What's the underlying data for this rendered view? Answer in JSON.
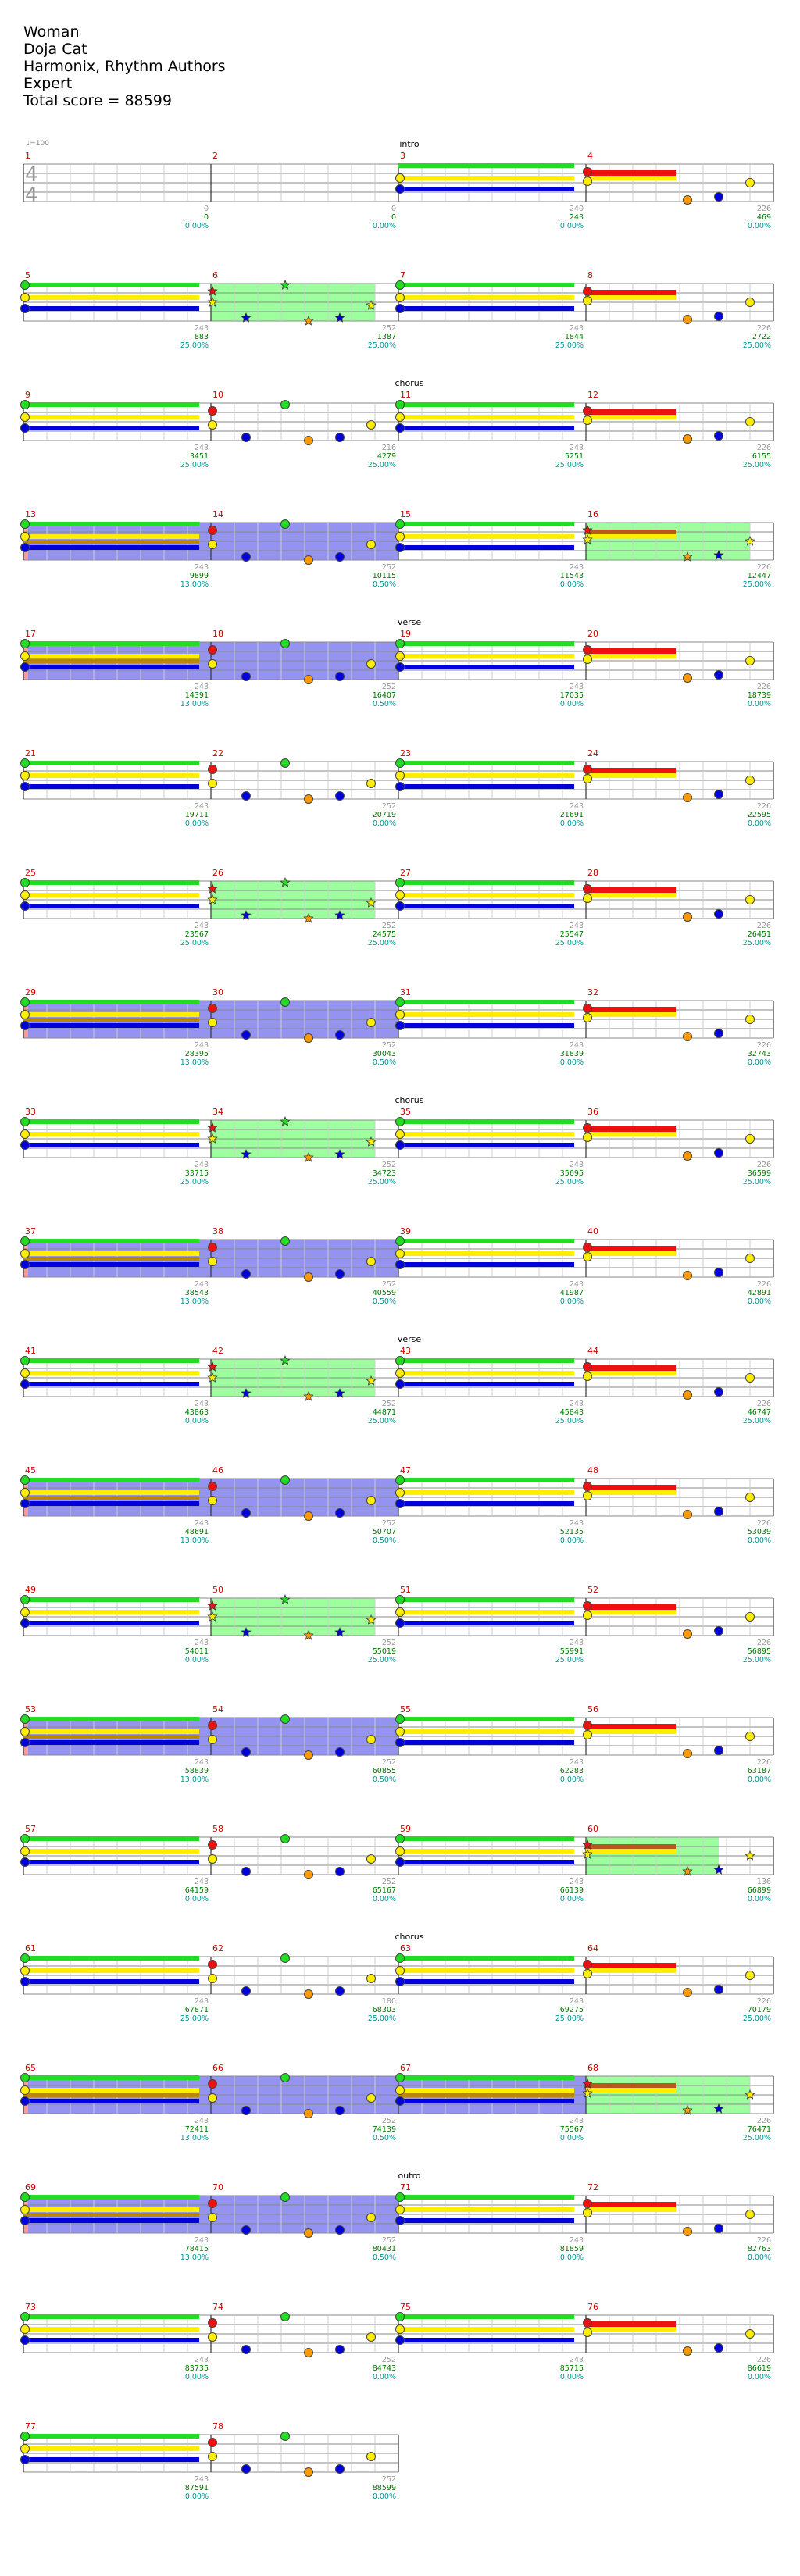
{
  "song": {
    "title": "Woman",
    "artist": "Doja Cat",
    "authors": "Harmonix, Rhythm Authors",
    "difficulty": "Expert",
    "total_score_label": "Total score = 88599"
  },
  "tempo_label": "♩=100",
  "time_signature": {
    "top": "4",
    "bottom": "4"
  },
  "colors": {
    "green": "#22dd22",
    "red": "#ee1111",
    "yellow": "#ffee00",
    "blue": "#0000dd",
    "orange": "#ff9900",
    "overdrive_fill": "#99ff99",
    "solo_fill": "#8888ee",
    "measure_num": "#cc0000",
    "score_num": "#007700",
    "percent": "#009999",
    "gray_num": "#999999"
  },
  "measure_count": 78,
  "sections": [
    {
      "measure": 3,
      "label": "intro"
    },
    {
      "measure": 11,
      "label": "chorus"
    },
    {
      "measure": 19,
      "label": "verse"
    },
    {
      "measure": 35,
      "label": "chorus"
    },
    {
      "measure": 43,
      "label": "verse"
    },
    {
      "measure": 63,
      "label": "chorus"
    },
    {
      "measure": 71,
      "label": "outro"
    }
  ],
  "measures": [
    {
      "n": 1,
      "gray": "0",
      "score": "0",
      "pct": "0.00%",
      "pattern": "empty"
    },
    {
      "n": 2,
      "gray": "0",
      "score": "0",
      "pct": "0.00%",
      "pattern": "empty"
    },
    {
      "n": 3,
      "gray": "240",
      "score": "243",
      "pct": "0.00%",
      "pattern": "sustain"
    },
    {
      "n": 4,
      "gray": "226",
      "score": "469",
      "pct": "0.00%",
      "pattern": "red"
    },
    {
      "n": 5,
      "gray": "243",
      "score": "883",
      "pct": "25.00%",
      "pattern": "sustain"
    },
    {
      "n": 6,
      "gray": "252",
      "score": "1387",
      "pct": "25.00%",
      "pattern": "stars",
      "od": true
    },
    {
      "n": 7,
      "gray": "243",
      "score": "1844",
      "pct": "25.00%",
      "pattern": "sustain"
    },
    {
      "n": 8,
      "gray": "226",
      "score": "2722",
      "pct": "25.00%",
      "pattern": "red"
    },
    {
      "n": 9,
      "gray": "243",
      "score": "3451",
      "pct": "25.00%",
      "pattern": "sustain"
    },
    {
      "n": 10,
      "gray": "216",
      "score": "4279",
      "pct": "25.00%",
      "pattern": "notes"
    },
    {
      "n": 11,
      "gray": "243",
      "score": "5251",
      "pct": "25.00%",
      "pattern": "sustain"
    },
    {
      "n": 12,
      "gray": "226",
      "score": "6155",
      "pct": "25.00%",
      "pattern": "red"
    },
    {
      "n": 13,
      "gray": "243",
      "score": "9899",
      "pct": "13.00%",
      "pattern": "sustain",
      "solo": true,
      "mark": true
    },
    {
      "n": 14,
      "gray": "252",
      "score": "10115",
      "pct": "0.50%",
      "pattern": "notes",
      "solo": true
    },
    {
      "n": 15,
      "gray": "243",
      "score": "11543",
      "pct": "0.00%",
      "pattern": "sustain"
    },
    {
      "n": 16,
      "gray": "226",
      "score": "12447",
      "pct": "25.00%",
      "pattern": "redstar",
      "od": true
    },
    {
      "n": 17,
      "gray": "243",
      "score": "14391",
      "pct": "13.00%",
      "pattern": "sustain",
      "solo": true,
      "mark": true
    },
    {
      "n": 18,
      "gray": "252",
      "score": "16407",
      "pct": "0.50%",
      "pattern": "notes",
      "solo": true
    },
    {
      "n": 19,
      "gray": "243",
      "score": "17035",
      "pct": "0.00%",
      "pattern": "sustain"
    },
    {
      "n": 20,
      "gray": "226",
      "score": "18739",
      "pct": "0.00%",
      "pattern": "red"
    },
    {
      "n": 21,
      "gray": "243",
      "score": "19711",
      "pct": "0.00%",
      "pattern": "sustain"
    },
    {
      "n": 22,
      "gray": "252",
      "score": "20719",
      "pct": "0.00%",
      "pattern": "notes"
    },
    {
      "n": 23,
      "gray": "243",
      "score": "21691",
      "pct": "0.00%",
      "pattern": "sustain"
    },
    {
      "n": 24,
      "gray": "226",
      "score": "22595",
      "pct": "0.00%",
      "pattern": "red"
    },
    {
      "n": 25,
      "gray": "243",
      "score": "23567",
      "pct": "25.00%",
      "pattern": "sustain"
    },
    {
      "n": 26,
      "gray": "252",
      "score": "24575",
      "pct": "25.00%",
      "pattern": "stars",
      "od": true
    },
    {
      "n": 27,
      "gray": "243",
      "score": "25547",
      "pct": "25.00%",
      "pattern": "sustain"
    },
    {
      "n": 28,
      "gray": "226",
      "score": "26451",
      "pct": "25.00%",
      "pattern": "red"
    },
    {
      "n": 29,
      "gray": "243",
      "score": "28395",
      "pct": "13.00%",
      "pattern": "sustain",
      "solo": true,
      "mark": true
    },
    {
      "n": 30,
      "gray": "252",
      "score": "30043",
      "pct": "0.50%",
      "pattern": "notes",
      "solo": true
    },
    {
      "n": 31,
      "gray": "243",
      "score": "31839",
      "pct": "0.00%",
      "pattern": "sustain"
    },
    {
      "n": 32,
      "gray": "226",
      "score": "32743",
      "pct": "0.00%",
      "pattern": "red"
    },
    {
      "n": 33,
      "gray": "243",
      "score": "33715",
      "pct": "25.00%",
      "pattern": "sustain"
    },
    {
      "n": 34,
      "gray": "252",
      "score": "34723",
      "pct": "25.00%",
      "pattern": "stars",
      "od": true
    },
    {
      "n": 35,
      "gray": "243",
      "score": "35695",
      "pct": "25.00%",
      "pattern": "sustain"
    },
    {
      "n": 36,
      "gray": "226",
      "score": "36599",
      "pct": "25.00%",
      "pattern": "red"
    },
    {
      "n": 37,
      "gray": "243",
      "score": "38543",
      "pct": "13.00%",
      "pattern": "sustain",
      "solo": true,
      "mark": true
    },
    {
      "n": 38,
      "gray": "252",
      "score": "40559",
      "pct": "0.50%",
      "pattern": "notes",
      "solo": true
    },
    {
      "n": 39,
      "gray": "243",
      "score": "41987",
      "pct": "0.00%",
      "pattern": "sustain"
    },
    {
      "n": 40,
      "gray": "226",
      "score": "42891",
      "pct": "0.00%",
      "pattern": "red"
    },
    {
      "n": 41,
      "gray": "243",
      "score": "43863",
      "pct": "0.00%",
      "pattern": "sustain"
    },
    {
      "n": 42,
      "gray": "252",
      "score": "44871",
      "pct": "25.00%",
      "pattern": "stars",
      "od": true
    },
    {
      "n": 43,
      "gray": "243",
      "score": "45843",
      "pct": "25.00%",
      "pattern": "sustain"
    },
    {
      "n": 44,
      "gray": "226",
      "score": "46747",
      "pct": "25.00%",
      "pattern": "red"
    },
    {
      "n": 45,
      "gray": "243",
      "score": "48691",
      "pct": "13.00%",
      "pattern": "sustain",
      "solo": true,
      "mark": true
    },
    {
      "n": 46,
      "gray": "252",
      "score": "50707",
      "pct": "0.50%",
      "pattern": "notes",
      "solo": true
    },
    {
      "n": 47,
      "gray": "243",
      "score": "52135",
      "pct": "0.00%",
      "pattern": "sustain"
    },
    {
      "n": 48,
      "gray": "226",
      "score": "53039",
      "pct": "0.00%",
      "pattern": "red"
    },
    {
      "n": 49,
      "gray": "243",
      "score": "54011",
      "pct": "0.00%",
      "pattern": "sustain"
    },
    {
      "n": 50,
      "gray": "252",
      "score": "55019",
      "pct": "25.00%",
      "pattern": "stars",
      "od": true
    },
    {
      "n": 51,
      "gray": "243",
      "score": "55991",
      "pct": "25.00%",
      "pattern": "sustain"
    },
    {
      "n": 52,
      "gray": "226",
      "score": "56895",
      "pct": "25.00%",
      "pattern": "red"
    },
    {
      "n": 53,
      "gray": "243",
      "score": "58839",
      "pct": "13.00%",
      "pattern": "sustain",
      "solo": true,
      "mark": true
    },
    {
      "n": 54,
      "gray": "252",
      "score": "60855",
      "pct": "0.50%",
      "pattern": "notes",
      "solo": true
    },
    {
      "n": 55,
      "gray": "243",
      "score": "62283",
      "pct": "0.00%",
      "pattern": "sustain"
    },
    {
      "n": 56,
      "gray": "226",
      "score": "63187",
      "pct": "0.00%",
      "pattern": "red"
    },
    {
      "n": 57,
      "gray": "243",
      "score": "64159",
      "pct": "0.00%",
      "pattern": "sustain"
    },
    {
      "n": 58,
      "gray": "252",
      "score": "65167",
      "pct": "0.00%",
      "pattern": "notes"
    },
    {
      "n": 59,
      "gray": "243",
      "score": "66139",
      "pct": "0.00%",
      "pattern": "sustain"
    },
    {
      "n": 60,
      "gray": "136",
      "score": "66899",
      "pct": "0.00%",
      "pattern": "redstar",
      "od": true,
      "odshort": true
    },
    {
      "n": 61,
      "gray": "243",
      "score": "67871",
      "pct": "25.00%",
      "pattern": "sustain"
    },
    {
      "n": 62,
      "gray": "180",
      "score": "68303",
      "pct": "25.00%",
      "pattern": "notes"
    },
    {
      "n": 63,
      "gray": "243",
      "score": "69275",
      "pct": "25.00%",
      "pattern": "sustain"
    },
    {
      "n": 64,
      "gray": "226",
      "score": "70179",
      "pct": "25.00%",
      "pattern": "red"
    },
    {
      "n": 65,
      "gray": "243",
      "score": "72411",
      "pct": "13.00%",
      "pattern": "sustain",
      "solo": true,
      "mark": true
    },
    {
      "n": 66,
      "gray": "252",
      "score": "74139",
      "pct": "0.50%",
      "pattern": "notes",
      "solo": true
    },
    {
      "n": 67,
      "gray": "243",
      "score": "75567",
      "pct": "0.00%",
      "pattern": "sustain",
      "solo": true
    },
    {
      "n": 68,
      "gray": "226",
      "score": "76471",
      "pct": "25.00%",
      "pattern": "redstar",
      "od": true
    },
    {
      "n": 69,
      "gray": "243",
      "score": "78415",
      "pct": "13.00%",
      "pattern": "sustain",
      "solo": true,
      "mark": true
    },
    {
      "n": 70,
      "gray": "252",
      "score": "80431",
      "pct": "0.50%",
      "pattern": "notes",
      "solo": true
    },
    {
      "n": 71,
      "gray": "243",
      "score": "81859",
      "pct": "0.00%",
      "pattern": "sustain"
    },
    {
      "n": 72,
      "gray": "226",
      "score": "82763",
      "pct": "0.00%",
      "pattern": "red"
    },
    {
      "n": 73,
      "gray": "243",
      "score": "83735",
      "pct": "0.00%",
      "pattern": "sustain"
    },
    {
      "n": 74,
      "gray": "252",
      "score": "84743",
      "pct": "0.00%",
      "pattern": "notes"
    },
    {
      "n": 75,
      "gray": "243",
      "score": "85715",
      "pct": "0.00%",
      "pattern": "sustain"
    },
    {
      "n": 76,
      "gray": "226",
      "score": "86619",
      "pct": "0.00%",
      "pattern": "red"
    },
    {
      "n": 77,
      "gray": "243",
      "score": "87591",
      "pct": "0.00%",
      "pattern": "sustain"
    },
    {
      "n": 78,
      "gray": "252",
      "score": "88599",
      "pct": "0.00%",
      "pattern": "notes"
    }
  ]
}
